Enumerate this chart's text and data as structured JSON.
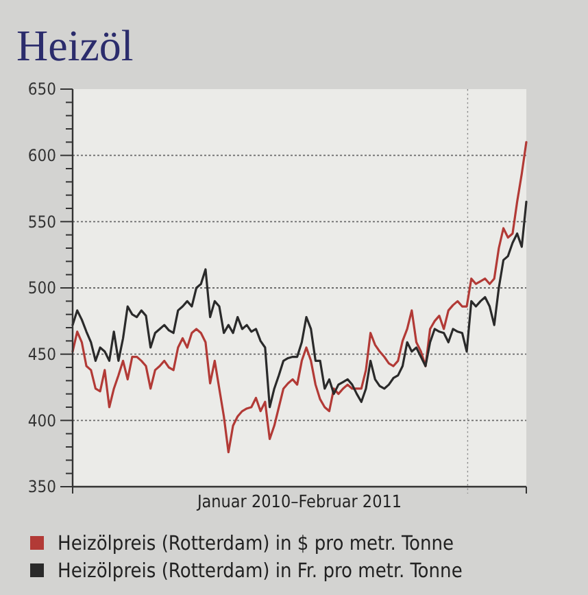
{
  "chart_data": {
    "type": "line",
    "title": "Heizöl",
    "xlabel": "Januar 2010–Februar 2011",
    "categories": [
      null,
      null,
      null,
      null,
      null,
      null,
      null,
      null,
      null,
      null,
      null,
      null,
      null,
      null,
      null,
      null,
      null,
      null,
      null,
      null,
      null,
      null,
      null,
      null,
      null,
      null,
      null,
      null,
      null,
      null,
      null,
      null,
      null,
      null,
      null,
      null,
      null,
      null,
      null,
      null,
      null,
      null,
      null,
      null,
      null,
      null,
      null,
      null,
      null,
      null,
      null,
      null,
      null,
      null,
      null,
      null,
      null,
      null,
      null,
      null,
      null,
      null,
      null,
      null,
      null,
      null,
      null,
      null,
      null,
      null,
      null,
      null,
      null,
      null,
      null,
      null,
      null,
      null,
      null,
      null,
      null,
      null,
      null,
      null,
      null,
      null,
      null,
      null,
      null,
      null,
      null,
      null,
      null,
      null,
      null,
      null,
      null,
      null,
      null,
      null
    ],
    "ylim": [
      350,
      650
    ],
    "yticks": [
      350,
      {
        "value": 360,
        "label": null
      },
      {
        "value": 370,
        "label": null
      },
      {
        "value": 380,
        "label": null
      },
      {
        "value": 390,
        "label": null
      },
      400,
      {
        "value": 410,
        "label": null
      },
      {
        "value": 420,
        "label": null
      },
      {
        "value": 430,
        "label": null
      },
      {
        "value": 440,
        "label": null
      },
      450,
      {
        "value": 460,
        "label": null
      },
      {
        "value": 470,
        "label": null
      },
      {
        "value": 480,
        "label": null
      },
      {
        "value": 490,
        "label": null
      },
      500,
      {
        "value": 510,
        "label": null
      },
      {
        "value": 520,
        "label": null
      },
      {
        "value": 530,
        "label": null
      },
      {
        "value": 540,
        "label": null
      },
      550,
      {
        "value": 560,
        "label": null
      },
      {
        "value": 570,
        "label": null
      },
      {
        "value": 580,
        "label": null
      },
      {
        "value": 590,
        "label": null
      },
      600,
      {
        "value": 610,
        "label": null
      },
      {
        "value": 620,
        "label": null
      },
      {
        "value": 630,
        "label": null
      },
      {
        "value": 640,
        "label": null
      },
      650
    ],
    "grid": "y",
    "legend": "bottom",
    "marker": "none",
    "line_style": "solid",
    "series": [
      {
        "name": "Heizölpreis (Rotterdam) in $ pro metr. Tonne",
        "color": "#b23a36",
        "values": [
          452,
          467,
          459,
          441,
          438,
          424,
          422,
          438,
          410,
          424,
          434,
          445,
          431,
          448,
          448,
          445,
          441,
          424,
          438,
          441,
          445,
          440,
          438,
          455,
          462,
          455,
          466,
          469,
          466,
          459,
          428,
          445,
          424,
          403,
          376,
          396,
          403,
          407,
          409,
          410,
          417,
          407,
          414,
          386,
          396,
          410,
          424,
          428,
          431,
          427,
          445,
          455,
          445,
          427,
          416,
          410,
          407,
          424,
          420,
          424,
          427,
          424,
          424,
          424,
          438,
          466,
          457,
          452,
          448,
          443,
          441,
          445,
          460,
          469,
          483,
          459,
          452,
          441,
          469,
          475,
          479,
          469,
          483,
          487,
          490,
          486,
          486,
          507,
          503,
          505,
          507,
          503,
          507,
          530,
          545,
          538,
          541,
          565,
          586,
          610
        ]
      },
      {
        "name": "Heizölpreis (Rotterdam) in Fr. pro metr. Tonne",
        "color": "#2a2a2a",
        "values": [
          472,
          483,
          476,
          467,
          459,
          445,
          455,
          452,
          445,
          467,
          445,
          462,
          486,
          480,
          478,
          483,
          479,
          455,
          466,
          469,
          472,
          468,
          466,
          483,
          486,
          490,
          486,
          500,
          503,
          514,
          478,
          490,
          486,
          466,
          472,
          466,
          478,
          469,
          472,
          467,
          469,
          460,
          455,
          410,
          424,
          434,
          445,
          447,
          448,
          448,
          459,
          478,
          469,
          445,
          445,
          424,
          431,
          420,
          427,
          429,
          431,
          427,
          420,
          414,
          424,
          445,
          431,
          426,
          424,
          427,
          432,
          434,
          441,
          459,
          452,
          455,
          448,
          441,
          459,
          469,
          467,
          466,
          459,
          469,
          467,
          466,
          452,
          490,
          486,
          490,
          493,
          486,
          472,
          500,
          521,
          524,
          534,
          541,
          531,
          565
        ]
      }
    ]
  }
}
